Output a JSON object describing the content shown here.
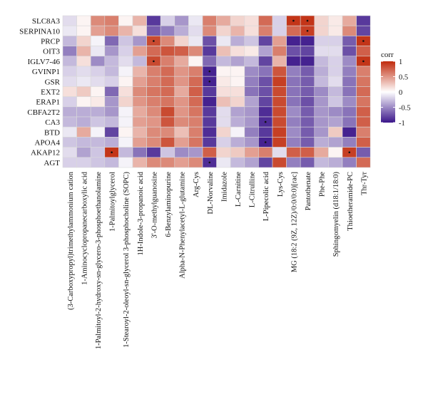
{
  "chart_data": {
    "type": "heatmap",
    "title": "",
    "xlabel": "",
    "ylabel": "",
    "rows": [
      "SLC8A3",
      "SERPINA10",
      "PRCP",
      "OIT3",
      "IGLV7-46",
      "GVINP1",
      "GSR",
      "EXT2",
      "ERAP1",
      "CBFA2T2",
      "CA3",
      "BTD",
      "APOA4",
      "AKAP12",
      "AGT"
    ],
    "columns": [
      "(3-Carboxypropyl)trimethylammonium cation",
      "1-Aminocyclopropanecarboxylic acid",
      "1-Palmitoyl-2-hydroxy-sn-glycero-3-phosphoethanolamine",
      "1-Palmitoylglycerol",
      "1-Stearoyl-2-oleoyl-sn-glycerol 3-phosphocholine (SOPC)",
      "1H-Indole-3-propanoic acid",
      "3'-O-methylguanosine",
      "6-Benzylaminopurine",
      "Alpha-N-Phenylacetyl-L-glutamine",
      "Arg-Cys",
      "DL-Norvaline",
      "Imidazole",
      "L-Carnitine",
      "L-Citrulline",
      "L-Pipecolic acid",
      "Lys-Cys",
      "MG (18:2 (9Z, 12Z)/0:0/0:0)[rac]",
      "Pantothenate",
      "Phe-Phe",
      "Sphingomyelin (d18:1/18:0)",
      "Thioetheramide-PC",
      "Thr-Tyr"
    ],
    "values": [
      [
        -0.15,
        0.05,
        0.55,
        0.6,
        0.05,
        0.35,
        -0.85,
        -0.2,
        -0.45,
        -0.1,
        0.6,
        0.4,
        0.2,
        0.15,
        0.7,
        -0.2,
        0.95,
        0.95,
        0.2,
        0.1,
        0.4,
        -0.85
      ],
      [
        -0.1,
        0.05,
        0.45,
        0.55,
        0.35,
        0.15,
        -0.7,
        -0.55,
        -0.35,
        -0.15,
        0.55,
        0.2,
        0.35,
        0.15,
        0.6,
        -0.2,
        0.7,
        0.9,
        0.2,
        0.1,
        0.55,
        -0.8
      ],
      [
        -0.3,
        0.2,
        -0.05,
        -0.65,
        -0.25,
        -0.45,
        0.85,
        0.55,
        0.2,
        -0.1,
        -0.75,
        -0.1,
        -0.35,
        -0.25,
        -0.8,
        0.45,
        -0.95,
        -0.95,
        -0.2,
        -0.2,
        -0.7,
        0.95
      ],
      [
        -0.55,
        0.35,
        -0.1,
        -0.45,
        -0.2,
        0.45,
        0.7,
        0.8,
        0.75,
        0.55,
        -0.85,
        0.3,
        0.15,
        0.1,
        -0.4,
        0.6,
        -0.75,
        -0.8,
        -0.15,
        -0.15,
        -0.75,
        0.75
      ],
      [
        -0.3,
        0.15,
        -0.5,
        -0.3,
        -0.15,
        -0.3,
        0.85,
        0.6,
        0.4,
        0.05,
        -0.65,
        -0.3,
        -0.4,
        -0.3,
        -0.8,
        0.35,
        -0.95,
        -0.95,
        -0.3,
        -0.2,
        -0.5,
        0.95
      ],
      [
        -0.2,
        -0.15,
        -0.2,
        -0.3,
        -0.05,
        0.35,
        0.6,
        0.7,
        0.5,
        0.6,
        -0.95,
        0.05,
        0.05,
        -0.5,
        -0.6,
        0.8,
        -0.55,
        -0.7,
        -0.35,
        -0.2,
        -0.55,
        0.6
      ],
      [
        -0.15,
        -0.1,
        -0.15,
        -0.2,
        0.05,
        0.45,
        0.6,
        0.7,
        0.5,
        0.7,
        -0.95,
        0.1,
        0.05,
        -0.55,
        -0.75,
        0.9,
        -0.6,
        -0.7,
        -0.3,
        -0.15,
        -0.6,
        0.65
      ],
      [
        0.15,
        0.25,
        0.05,
        -0.65,
        0.15,
        0.55,
        0.65,
        0.7,
        0.4,
        0.75,
        -0.85,
        0.15,
        0.15,
        -0.6,
        -0.75,
        0.85,
        -0.6,
        -0.7,
        -0.5,
        -0.3,
        -0.6,
        0.7
      ],
      [
        -0.2,
        0.05,
        0.1,
        -0.45,
        0.2,
        0.5,
        0.6,
        0.65,
        0.5,
        0.7,
        -0.95,
        0.3,
        0.2,
        -0.4,
        -0.8,
        0.85,
        -0.6,
        -0.75,
        -0.45,
        -0.25,
        -0.5,
        0.65
      ],
      [
        -0.35,
        -0.35,
        -0.35,
        -0.45,
        -0.05,
        0.4,
        0.55,
        0.85,
        0.5,
        0.65,
        -0.85,
        -0.15,
        -0.4,
        -0.45,
        -0.9,
        0.85,
        -0.5,
        -0.7,
        -0.45,
        -0.5,
        -0.6,
        0.75
      ],
      [
        -0.3,
        -0.35,
        -0.25,
        -0.3,
        -0.05,
        0.45,
        0.5,
        0.8,
        0.55,
        0.6,
        -0.85,
        -0.15,
        -0.35,
        -0.45,
        -0.9,
        0.85,
        -0.55,
        -0.7,
        -0.45,
        -0.4,
        -0.6,
        0.75
      ],
      [
        -0.1,
        0.4,
        -0.05,
        -0.8,
        0.05,
        0.35,
        0.55,
        0.55,
        0.3,
        0.6,
        -0.9,
        0.2,
        -0.05,
        -0.55,
        -0.85,
        0.9,
        -0.5,
        -0.7,
        -0.45,
        0.25,
        -0.95,
        0.6
      ],
      [
        -0.25,
        -0.3,
        -0.3,
        -0.35,
        -0.05,
        0.45,
        0.55,
        0.8,
        0.45,
        0.65,
        -0.85,
        -0.2,
        -0.35,
        -0.45,
        -0.95,
        0.9,
        -0.55,
        -0.7,
        -0.35,
        -0.4,
        -0.55,
        0.75
      ],
      [
        -0.15,
        -0.4,
        -0.25,
        0.95,
        -0.3,
        -0.6,
        -0.85,
        -0.25,
        -0.5,
        -0.45,
        0.75,
        0.2,
        0.25,
        0.45,
        0.6,
        -0.15,
        0.75,
        0.75,
        0.4,
        0.05,
        0.9,
        -0.7
      ],
      [
        -0.2,
        -0.2,
        -0.25,
        -0.3,
        -0.05,
        0.35,
        0.55,
        0.55,
        0.45,
        0.55,
        -0.9,
        -0.1,
        -0.3,
        -0.4,
        -0.8,
        0.85,
        -0.55,
        -0.7,
        -0.3,
        -0.35,
        -0.55,
        0.7
      ]
    ],
    "significant": [
      [
        0,
        16
      ],
      [
        0,
        17
      ],
      [
        1,
        17
      ],
      [
        2,
        6
      ],
      [
        2,
        21
      ],
      [
        4,
        6
      ],
      [
        4,
        21
      ],
      [
        5,
        10
      ],
      [
        6,
        10
      ],
      [
        10,
        14
      ],
      [
        12,
        14
      ],
      [
        13,
        3
      ],
      [
        13,
        20
      ],
      [
        14,
        10
      ]
    ],
    "colorbar": {
      "title": "corr",
      "ticks": [
        1,
        0.5,
        0,
        -0.5,
        -1
      ],
      "tick_labels": [
        "1",
        "0.5",
        "0",
        "-0.5",
        "-1"
      ],
      "range": [
        -1,
        1
      ],
      "low_color": "#3b168a",
      "mid_color": "#ffffff",
      "high_color": "#c02a0c"
    },
    "grid": true,
    "legend_position": "right"
  }
}
